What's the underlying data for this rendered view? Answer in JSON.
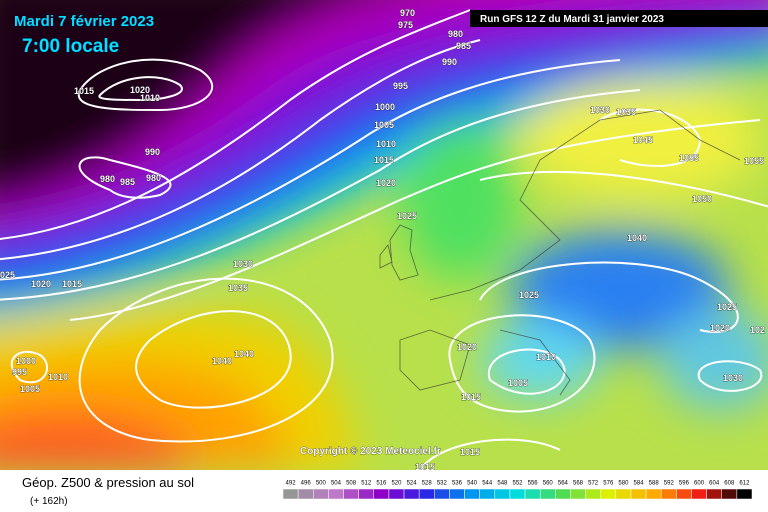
{
  "header": {
    "date": "Mardi 7 février 2023",
    "time": "7:00 locale",
    "run": "Run GFS 12 Z du Mardi 31 janvier 2023"
  },
  "copyright": "Copyright © 2023 Meteociel.fr",
  "footer": {
    "title": "Géop. Z500 & pression au sol",
    "lead": "(+ 162h)"
  },
  "colorbar": {
    "values": [
      492,
      496,
      500,
      504,
      508,
      512,
      516,
      520,
      524,
      528,
      532,
      536,
      540,
      544,
      548,
      552,
      556,
      560,
      564,
      568,
      572,
      576,
      580,
      584,
      588,
      592,
      596,
      600,
      604,
      608,
      612
    ]
  },
  "isobar_labels": [
    "970",
    "975",
    "980",
    "985",
    "990",
    "995",
    "1000",
    "1005",
    "1010",
    "1015",
    "1020",
    "1025",
    "1030",
    "1035",
    "1040",
    "1040",
    "1015",
    "1020",
    "1010",
    "990",
    "980",
    "985",
    "980",
    "025",
    "1020",
    "1015",
    "1000",
    "995",
    "1005",
    "1010",
    "1030",
    "1035",
    "1045",
    "1055",
    "1055",
    "1050",
    "1040",
    "1025",
    "1025",
    "1020",
    "102",
    "1020",
    "1010",
    "1005",
    "1030",
    "1015",
    "1015",
    "1015"
  ]
}
